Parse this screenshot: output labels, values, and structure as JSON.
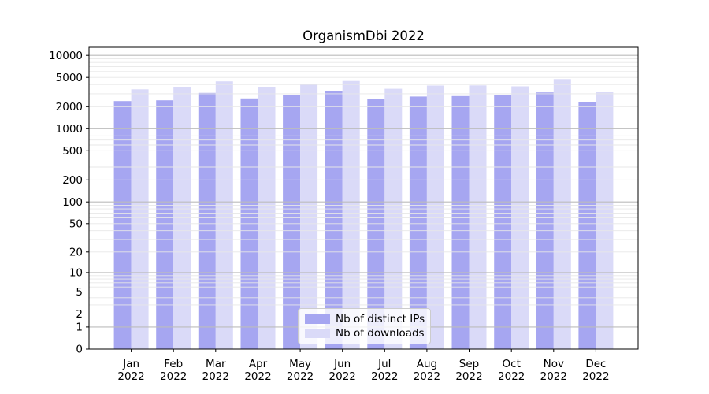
{
  "chart_data": {
    "type": "bar",
    "title": "OrganismDbi 2022",
    "year": "2022",
    "months": [
      "Jan",
      "Feb",
      "Mar",
      "Apr",
      "May",
      "Jun",
      "Jul",
      "Aug",
      "Sep",
      "Oct",
      "Nov",
      "Dec"
    ],
    "categories": [
      "Jan 2022",
      "Feb 2022",
      "Mar 2022",
      "Apr 2022",
      "May 2022",
      "Jun 2022",
      "Jul 2022",
      "Aug 2022",
      "Sep 2022",
      "Oct 2022",
      "Nov 2022",
      "Dec 2022"
    ],
    "series": [
      {
        "name": "Nb of distinct IPs",
        "color": "#a6a6f1",
        "values": [
          2380,
          2440,
          3080,
          2590,
          2870,
          3230,
          2520,
          2750,
          2790,
          2860,
          3130,
          2290
        ]
      },
      {
        "name": "Nb of downloads",
        "color": "#dadaf8",
        "values": [
          3440,
          3700,
          4420,
          3670,
          4050,
          4480,
          3500,
          3880,
          3900,
          3780,
          4750,
          3140
        ]
      }
    ],
    "xlabel": "",
    "ylabel": "",
    "y_axis": {
      "scale": "log1p",
      "ticks": [
        0,
        1,
        2,
        5,
        10,
        20,
        50,
        100,
        200,
        500,
        1000,
        2000,
        5000,
        10000
      ],
      "range": [
        0,
        12850
      ]
    },
    "grid": true,
    "legend_position": "lower center",
    "frame_color": "#000000",
    "grid_minor_color": "#e7e7e7",
    "grid_major_color": "#bcbcbc"
  }
}
